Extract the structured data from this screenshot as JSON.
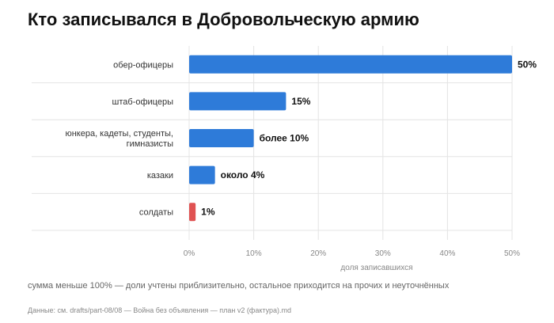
{
  "title": "Кто записывался в Добровольческую армию",
  "note": "сумма меньше 100% — доли учтены приблизительно, остальное приходится на прочих и неуточнённых",
  "source": "Данные: см. drafts/part-08/08 — Война без объявления — план v2 (фактура).md",
  "colors": {
    "primary": "#2e7bd9",
    "accent": "#e05252",
    "grid": "#e4e4e4"
  },
  "chart_data": {
    "type": "bar",
    "orientation": "horizontal",
    "categories": [
      [
        "обер-офицеры"
      ],
      [
        "штаб-офицеры"
      ],
      [
        "юнкера, кадеты, студенты,",
        "гимназисты"
      ],
      [
        "казаки"
      ],
      [
        "солдаты"
      ]
    ],
    "values": [
      50,
      15,
      10,
      4,
      1
    ],
    "value_labels": [
      "50%",
      "15%",
      "более 10%",
      "около 4%",
      "1%"
    ],
    "bar_colors": [
      "#2e7bd9",
      "#2e7bd9",
      "#2e7bd9",
      "#2e7bd9",
      "#e05252"
    ],
    "xlabel": "доля записавшихся",
    "xlim": [
      0,
      50
    ],
    "xticks": [
      0,
      10,
      20,
      30,
      40,
      50
    ],
    "xtick_labels": [
      "0%",
      "10%",
      "20%",
      "30%",
      "40%",
      "50%"
    ],
    "grid": true
  }
}
